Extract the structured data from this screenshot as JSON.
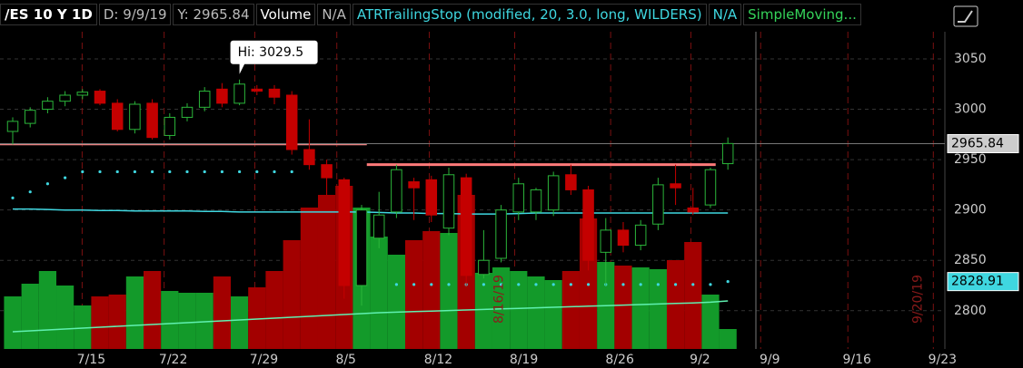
{
  "chart_data": {
    "type": "candlestick",
    "header": [
      {
        "text": "/ES 10 Y 1D",
        "color": "#ffffff"
      },
      {
        "text": "D: 9/9/19",
        "color": "#bbbbbb"
      },
      {
        "text": "Y: 2965.84",
        "color": "#bbbbbb"
      },
      {
        "text": "Volume",
        "color": "#ffffff"
      },
      {
        "text": "N/A",
        "color": "#bbbbbb"
      },
      {
        "text": "ATRTrailingStop (modified, 20, 3.0, long, WILDERS)",
        "color": "#3fd7e0"
      },
      {
        "text": "N/A",
        "color": "#3fd7e0"
      },
      {
        "text": "SimpleMoving...",
        "color": "#35d35a"
      }
    ],
    "xlim": [
      -0.73,
      53.44
    ],
    "xticks": [
      {
        "value": 4.5,
        "label": "7/15"
      },
      {
        "value": 9.2,
        "label": "7/22"
      },
      {
        "value": 14.4,
        "label": "7/29"
      },
      {
        "value": 19.1,
        "label": "8/5"
      },
      {
        "value": 24.4,
        "label": "8/12"
      },
      {
        "value": 29.3,
        "label": "8/19"
      },
      {
        "value": 34.8,
        "label": "8/26"
      },
      {
        "value": 39.4,
        "label": "9/2"
      },
      {
        "value": 43.4,
        "label": "9/9"
      },
      {
        "value": 48.4,
        "label": "9/16"
      },
      {
        "value": 53.3,
        "label": "9/23"
      }
    ],
    "ylim": [
      2762,
      3077
    ],
    "yticks": [
      2800,
      2850,
      2900,
      2950,
      3000,
      3050
    ],
    "up_color": "#2bb53a",
    "down_color": "#c40000",
    "open": [
      2978,
      2986,
      3000,
      3008,
      3014,
      3018,
      3006,
      2980,
      3006,
      2974,
      2992,
      3002,
      3020,
      3006,
      3020,
      3020,
      3014,
      2960,
      2945,
      2930,
      2825,
      2872,
      2898,
      2928,
      2930,
      2882,
      2932,
      2836,
      2852,
      2898,
      2898,
      2900,
      2935,
      2920,
      2858,
      2880,
      2865,
      2886,
      2926,
      2902,
      2905,
      2946
    ],
    "high": [
      2992,
      3002,
      3012,
      3018,
      3020,
      3020,
      3010,
      3008,
      3010,
      2996,
      3006,
      3022,
      3026,
      3029.5,
      3024,
      3024,
      3018,
      2990,
      2950,
      2932,
      2905,
      2918,
      2945,
      2932,
      2934,
      2942,
      2936,
      2880,
      2905,
      2932,
      2922,
      2938,
      2945,
      2924,
      2892,
      2888,
      2890,
      2932,
      2945,
      2922,
      2942,
      2972
    ],
    "low": [
      2965,
      2982,
      2996,
      3003,
      3010,
      3004,
      2978,
      2976,
      2970,
      2970,
      2988,
      2998,
      3002,
      3004,
      3014,
      3005,
      2955,
      2940,
      2915,
      2812,
      2805,
      2862,
      2892,
      2890,
      2888,
      2875,
      2825,
      2832,
      2848,
      2890,
      2890,
      2894,
      2915,
      2840,
      2825,
      2858,
      2860,
      2880,
      2905,
      2895,
      2902,
      2940
    ],
    "close": [
      2988,
      2999,
      3008,
      3014,
      3017,
      3006,
      2980,
      3005,
      2972,
      2992,
      3002,
      3018,
      3006,
      3025,
      3018,
      3012,
      2960,
      2945,
      2932,
      2825,
      2900,
      2895,
      2940,
      2922,
      2895,
      2935,
      2835,
      2850,
      2900,
      2926,
      2920,
      2934,
      2920,
      2850,
      2880,
      2865,
      2885,
      2925,
      2922,
      2898,
      2940,
      2966
    ],
    "volume_lim": [
      0,
      175
    ],
    "volume": [
      29,
      36,
      43,
      35,
      24,
      29,
      30,
      40,
      43,
      32,
      31,
      31,
      40,
      29,
      34,
      43,
      60,
      78,
      85,
      90,
      78,
      62,
      52,
      60,
      65,
      64,
      85,
      42,
      45,
      43,
      40,
      38,
      43,
      72,
      48,
      46,
      45,
      44,
      49,
      59,
      30,
      11
    ],
    "volume_avg": {
      "color": "#5ff0b0",
      "values": [
        9.5,
        10,
        10.5,
        11,
        11.5,
        12,
        12.5,
        13,
        13.5,
        14,
        14.5,
        15,
        15.5,
        16,
        16.5,
        17,
        17.5,
        18,
        18.5,
        19,
        19.5,
        20,
        20.3,
        20.6,
        20.9,
        21.2,
        21.5,
        21.8,
        22.1,
        22.4,
        22.7,
        23,
        23.3,
        23.6,
        23.9,
        24.2,
        24.5,
        24.8,
        25.1,
        25.4,
        25.8,
        26.5
      ]
    },
    "sma": {
      "color": "#3fd7e0",
      "values": [
        2901,
        2901,
        2900.5,
        2900,
        2900,
        2899.5,
        2899.5,
        2899,
        2899,
        2899,
        2899,
        2898.5,
        2898.5,
        2898,
        2898,
        2898,
        2898,
        2898,
        2898,
        2898,
        2898,
        2897.5,
        2897,
        2897,
        2896.5,
        2896.5,
        2896,
        2896,
        2896,
        2896.5,
        2897,
        2897,
        2897,
        2897,
        2897,
        2897,
        2897,
        2897,
        2897,
        2897,
        2897,
        2897
      ]
    },
    "atr_stop": {
      "color": "#3fd7e0",
      "values": [
        2912,
        2918,
        2926,
        2932,
        2938,
        2938,
        2938,
        2938,
        2938,
        2938,
        2938,
        2938,
        2938,
        2938,
        2938,
        2938,
        2938,
        null,
        null,
        null,
        null,
        null,
        2826,
        2826,
        2826,
        2826,
        2826,
        2826,
        2826,
        2826,
        2826,
        2826,
        2826,
        2826,
        2826,
        2826,
        2826,
        2826,
        2826,
        2826,
        2826,
        2828.91
      ]
    },
    "levels": [
      {
        "value": 2965,
        "from": -0.73,
        "to": 20.3,
        "color": "#e87f7f"
      },
      {
        "value": 2945,
        "from": 20.3,
        "to": 40.3,
        "color": "#ff7a7a"
      }
    ],
    "price_tags": [
      {
        "value": 2965.84,
        "color": "#cccccc"
      },
      {
        "value": 2828.91,
        "color": "#3fd7e0"
      }
    ],
    "hi_label": "Hi: 3029.5",
    "annotations": [
      {
        "text": "8/16/19",
        "x": 27.9
      },
      {
        "text": "9/20/19",
        "x": 51.9
      }
    ]
  }
}
